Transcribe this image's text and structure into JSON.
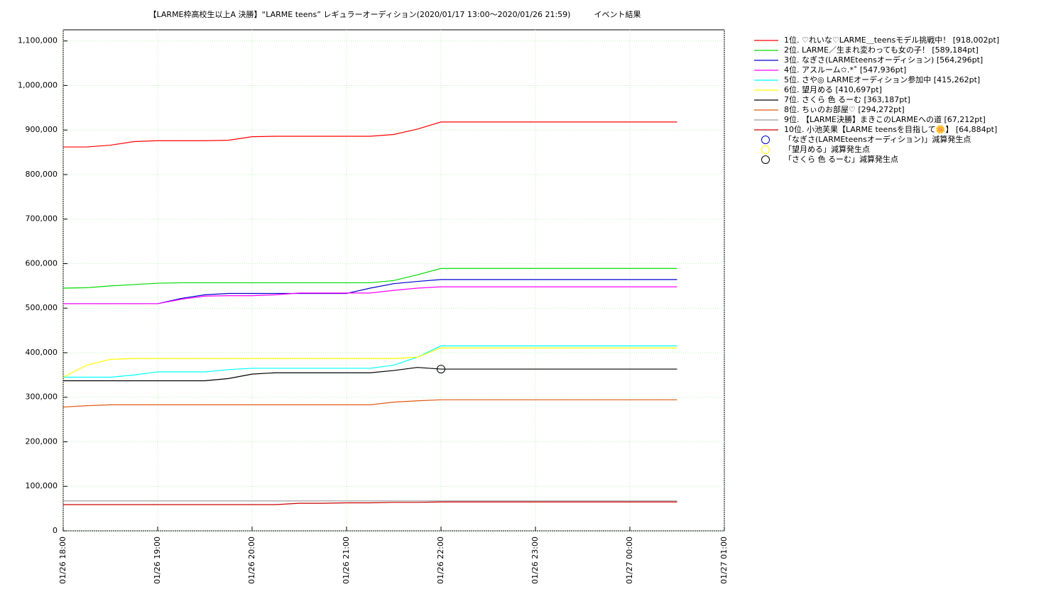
{
  "chart_data": {
    "type": "line",
    "title": "【LARME枠高校生以上A 決勝】“LARME teens” レギュラーオーディション(2020/01/17 13:00〜2020/01/26 21:59)　　　イベント結果",
    "x": [
      "01/26 18:00",
      "01/26 18:15",
      "01/26 18:30",
      "01/26 18:45",
      "01/26 19:00",
      "01/26 19:15",
      "01/26 19:30",
      "01/26 19:45",
      "01/26 20:00",
      "01/26 20:15",
      "01/26 20:30",
      "01/26 20:45",
      "01/26 21:00",
      "01/26 21:15",
      "01/26 21:30",
      "01/26 21:45",
      "01/26 22:00",
      "01/26 22:15",
      "01/26 22:30",
      "01/26 22:45",
      "01/26 23:00",
      "01/26 23:15",
      "01/26 23:30",
      "01/26 23:45",
      "01/27 00:00",
      "01/27 00:15",
      "01/27 00:30"
    ],
    "xlim": [
      "01/26 18:00",
      "01/27 01:00"
    ],
    "xticks": [
      "01/26 18:00",
      "01/26 19:00",
      "01/26 20:00",
      "01/26 21:00",
      "01/26 22:00",
      "01/26 23:00",
      "01/27 00:00",
      "01/27 01:00"
    ],
    "ylim": [
      0,
      1125000
    ],
    "yticks": [
      0,
      {
        "value": 100000,
        "label": "100,000"
      },
      {
        "value": 200000,
        "label": "200,000"
      },
      {
        "value": 300000,
        "label": "300,000"
      },
      {
        "value": 400000,
        "label": "400,000"
      },
      {
        "value": 500000,
        "label": "500,000"
      },
      {
        "value": 600000,
        "label": "600,000"
      },
      {
        "value": 700000,
        "label": "700,000"
      },
      {
        "value": 800000,
        "label": "800,000"
      },
      {
        "value": 900000,
        "label": "900,000"
      },
      {
        "value": 1000000,
        "label": "1,000,000"
      },
      {
        "value": 1100000,
        "label": "1,100,000"
      }
    ],
    "grid": true,
    "series": [
      {
        "name": "1位. ♡れいな♡LARME＿teensモデル挑戦中！ [918,002pt]",
        "color": "#ff0000",
        "values": [
          862000,
          862000,
          866000,
          874000,
          876000,
          876000,
          876000,
          877000,
          885000,
          886000,
          886000,
          886000,
          886000,
          886000,
          890000,
          902000,
          918002,
          918002,
          918002,
          918002,
          918002,
          918002,
          918002,
          918002,
          918002,
          918002,
          918002
        ]
      },
      {
        "name": "2位. LARME／生まれ変わっても女の子！ [589,184pt]",
        "color": "#00dd00",
        "values": [
          545000,
          546000,
          550000,
          553000,
          556000,
          557000,
          557000,
          557000,
          557000,
          557000,
          557000,
          557000,
          557000,
          557000,
          562000,
          575000,
          589184,
          589184,
          589184,
          589184,
          589184,
          589184,
          589184,
          589184,
          589184,
          589184,
          589184
        ]
      },
      {
        "name": "3位. なぎさ(LARMEteensオーディション) [564,296pt]",
        "color": "#0000cc",
        "values": [
          510000,
          510000,
          510000,
          510000,
          510000,
          522000,
          530000,
          533000,
          533000,
          533000,
          533000,
          533000,
          533000,
          545000,
          555000,
          560000,
          564296,
          564296,
          564296,
          564296,
          564296,
          564296,
          564296,
          564296,
          564296,
          564296,
          564296
        ]
      },
      {
        "name": "4位. アスルーム✩.*˚ [547,936pt]",
        "color": "#ff00ff",
        "values": [
          510000,
          510000,
          510000,
          510000,
          510000,
          520000,
          527000,
          528000,
          528000,
          530000,
          534000,
          534000,
          534000,
          534000,
          540000,
          545000,
          547936,
          547936,
          547936,
          547936,
          547936,
          547936,
          547936,
          547936,
          547936,
          547936,
          547936
        ]
      },
      {
        "name": "5位. さや◎ LARMEオーディション参加中 [415,262pt]",
        "color": "#00ffff",
        "values": [
          345000,
          345000,
          345000,
          350000,
          357000,
          357000,
          357000,
          362000,
          365000,
          365000,
          365000,
          365000,
          365000,
          365000,
          372000,
          390000,
          415262,
          415262,
          415262,
          415262,
          415262,
          415262,
          415262,
          415262,
          415262,
          415262,
          415262
        ]
      },
      {
        "name": "6位. 望月める [410,697pt]",
        "color": "#ffff00",
        "values": [
          345000,
          372000,
          385000,
          387000,
          387000,
          387000,
          387000,
          387000,
          387000,
          387000,
          387000,
          387000,
          387000,
          387000,
          387000,
          390000,
          410697,
          410697,
          410697,
          410697,
          410697,
          410697,
          410697,
          410697,
          410697,
          410697,
          410697
        ]
      },
      {
        "name": "7位. さくら 色 るーむ [363,187pt]",
        "color": "#000000",
        "values": [
          337000,
          337000,
          337000,
          337000,
          337000,
          337000,
          337000,
          342000,
          352000,
          355000,
          355000,
          355000,
          355000,
          355000,
          360000,
          367000,
          363187,
          363187,
          363187,
          363187,
          363187,
          363187,
          363187,
          363187,
          363187,
          363187,
          363187
        ]
      },
      {
        "name": "8位. ちぃのお部屋♡ [294,272pt]",
        "color": "#e05a10",
        "values": [
          278000,
          281000,
          283000,
          283000,
          283000,
          283000,
          283000,
          283000,
          283000,
          283000,
          283000,
          283000,
          283000,
          283000,
          289000,
          292000,
          294272,
          294272,
          294272,
          294272,
          294272,
          294272,
          294272,
          294272,
          294272,
          294272,
          294272
        ]
      },
      {
        "name": "9位. 【LARME決勝】まきこのLARMEへの道 [67,212pt]",
        "color": "#999999",
        "values": [
          67212,
          67212,
          67212,
          67212,
          67212,
          67212,
          67212,
          67212,
          67212,
          67212,
          67212,
          67212,
          67212,
          67212,
          67212,
          67212,
          67212,
          67212,
          67212,
          67212,
          67212,
          67212,
          67212,
          67212,
          67212,
          67212,
          67212
        ]
      },
      {
        "name": "10位. 小池芙果【LARME teensを目指して🌼】 [64,884pt]",
        "color": "#cc0000",
        "values": [
          59000,
          59000,
          59000,
          59000,
          59000,
          59000,
          59000,
          59000,
          59000,
          59000,
          62000,
          62000,
          63000,
          63000,
          64000,
          64000,
          64884,
          64884,
          64884,
          64884,
          64884,
          64884,
          64884,
          64884,
          64884,
          64884,
          64884
        ]
      }
    ],
    "markers": [
      {
        "name": "「なぎさ(LARMEteensオーディション)」減算発生点",
        "color": "#0000cc",
        "x": [],
        "values": []
      },
      {
        "name": "「望月める」減算発生点",
        "color": "#ffff00",
        "x": [],
        "values": []
      },
      {
        "name": "「さくら 色 るーむ」減算発生点",
        "color": "#000000",
        "x": [
          "01/26 22:00"
        ],
        "values": [
          363187
        ]
      }
    ]
  }
}
